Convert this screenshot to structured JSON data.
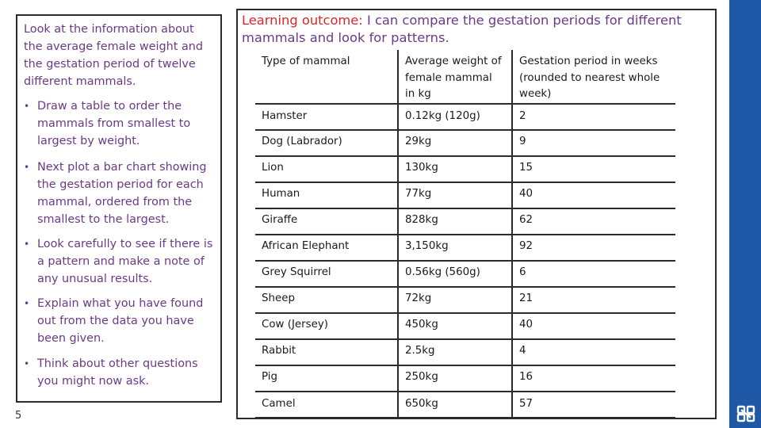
{
  "instructions": {
    "intro": "Look at the information about the average female weight and the gestation period of twelve different mammals.",
    "tasks": [
      "Draw a table to order the mammals from smallest to largest by weight.",
      "Next plot a bar chart showing the gestation period for each mammal, ordered from the smallest to the largest.",
      "Look carefully to see if there is a pattern and make a note of any unusual results.",
      "Explain what you have found out from the data you have been given.",
      "Think about other questions you might now ask."
    ]
  },
  "slide_number": "5",
  "outcome": {
    "label": "Learning outcome:",
    "text": " I can compare the gestation periods for different mammals and look for patterns."
  },
  "table": {
    "headers": [
      "Type of mammal",
      "Average weight of female mammal in kg",
      "Gestation period in weeks (rounded to nearest whole week)"
    ],
    "rows": [
      [
        "Hamster",
        "0.12kg (120g)",
        "2"
      ],
      [
        "Dog (Labrador)",
        "29kg",
        "9"
      ],
      [
        "Lion",
        "130kg",
        "15"
      ],
      [
        "Human",
        "77kg",
        "40"
      ],
      [
        "Giraffe",
        "828kg",
        "62"
      ],
      [
        "African Elephant",
        "3,150kg",
        "92"
      ],
      [
        "Grey Squirrel",
        "0.56kg (560g)",
        "6"
      ],
      [
        "Sheep",
        "72kg",
        "21"
      ],
      [
        "Cow (Jersey)",
        "450kg",
        "40"
      ],
      [
        "Rabbit",
        "2.5kg",
        "4"
      ],
      [
        "Pig",
        "250kg",
        "16"
      ],
      [
        "Camel",
        "650kg",
        "57"
      ]
    ]
  },
  "colors": {
    "text_purple": "#6b3a86",
    "label_red": "#d62828",
    "brand_blue": "#1f58a6"
  }
}
